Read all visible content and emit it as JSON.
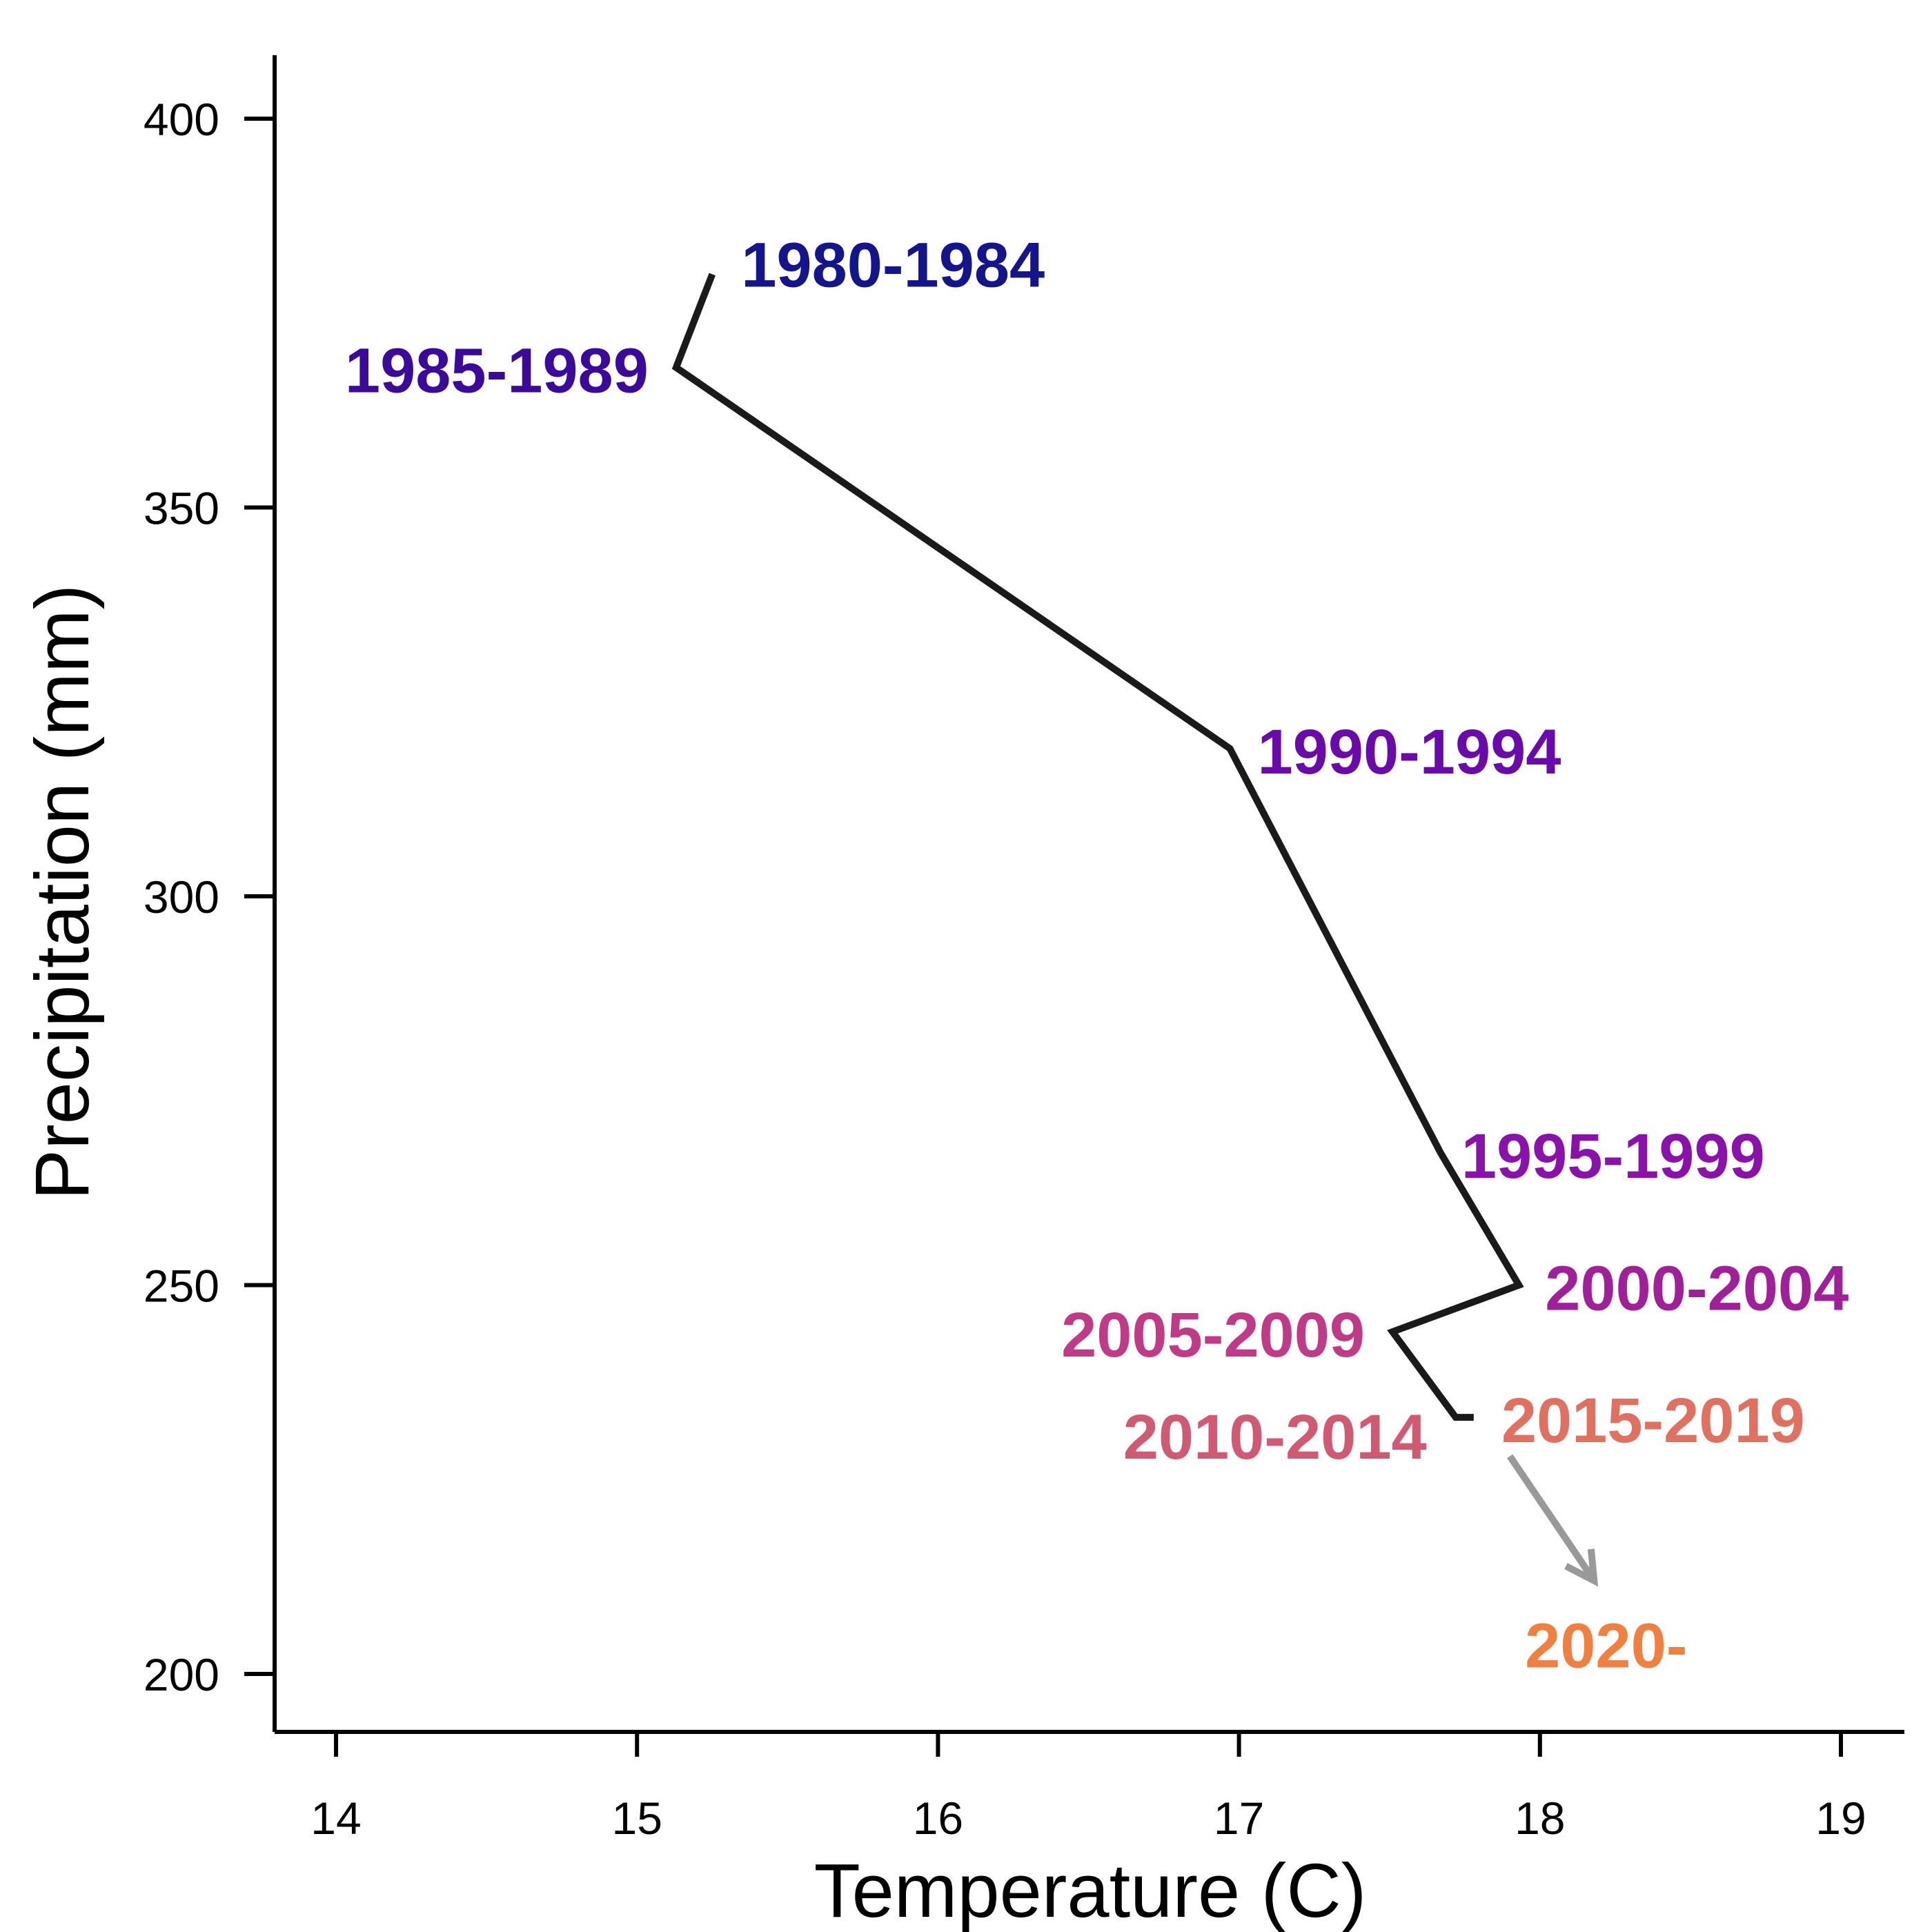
{
  "chart_data": {
    "type": "line",
    "xlabel": "Temperature (C)",
    "ylabel": "Precipitation (mm)",
    "xlim": [
      13.8,
      19.2
    ],
    "ylim": [
      192,
      408
    ],
    "x_ticks": [
      14,
      15,
      16,
      17,
      18,
      19
    ],
    "y_ticks": [
      200,
      250,
      300,
      350,
      400
    ],
    "grid": false,
    "series": [
      {
        "color": "#1a1a1a",
        "points": [
          {
            "period": "1980-1984",
            "x": 15.25,
            "y": 380,
            "color": "#14148c"
          },
          {
            "period": "1985-1989",
            "x": 15.13,
            "y": 368,
            "color": "#3c0a9a"
          },
          {
            "period": "1990-1994",
            "x": 16.97,
            "y": 319,
            "color": "#6a0aaa"
          },
          {
            "period": "1995-1999",
            "x": 17.67,
            "y": 267,
            "color": "#8a12aa"
          },
          {
            "period": "2000-2004",
            "x": 17.93,
            "y": 250,
            "color": "#a0209a"
          },
          {
            "period": "2005-2009",
            "x": 17.51,
            "y": 244,
            "color": "#c03a88"
          },
          {
            "period": "2010-2014",
            "x": 17.72,
            "y": 233,
            "color": "#d05a72"
          },
          {
            "period": "2015-2019",
            "x": 17.78,
            "y": 233,
            "color": "#e07060"
          }
        ]
      }
    ],
    "projection": {
      "period": "2020-",
      "color": "#f08040",
      "arrow_color": "#999999",
      "arrow_from": {
        "x": 17.9,
        "y": 228
      },
      "arrow_to": {
        "x": 18.18,
        "y": 212
      }
    }
  }
}
